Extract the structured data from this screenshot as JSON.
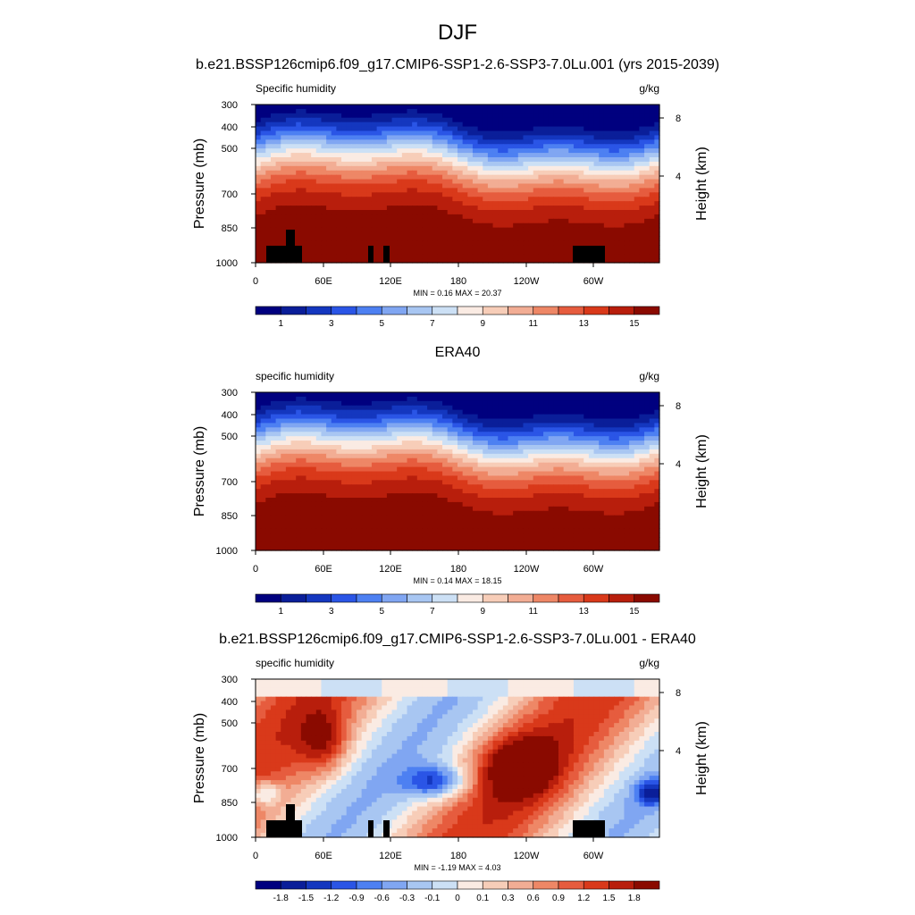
{
  "figure": {
    "title": "DJF"
  },
  "chart_data": [
    {
      "type": "heatmap",
      "title": "b.e21.BSSP126cmip6.f09_g17.CMIP6-SSP1-2.6-SSP3-7.0Lu.001 (yrs 2015-2039)",
      "left_label": "Specific humidity",
      "right_label": "g/kg",
      "ylabel": "Pressure (mb)",
      "ylabel_right": "Height (km)",
      "x_ticks": [
        "0",
        "60E",
        "120E",
        "180",
        "120W",
        "60W"
      ],
      "y_ticks": [
        "300",
        "400",
        "500",
        "700",
        "850",
        "1000"
      ],
      "y_ticks_right": [
        "8",
        "4"
      ],
      "stats": "MIN =  0.16  MAX =  20.37",
      "colorbar_labels": [
        "1",
        "3",
        "5",
        "7",
        "9",
        "11",
        "13",
        "15"
      ],
      "colors": [
        "#00007f",
        "#0a1e99",
        "#1437bf",
        "#2a55e6",
        "#4d80f2",
        "#80a6f2",
        "#a8c6f2",
        "#cce0f5",
        "#faebe3",
        "#f7cdb8",
        "#f2ad94",
        "#ee8766",
        "#e65c3e",
        "#d9391a",
        "#b81e0c",
        "#8a0a00"
      ],
      "min": 0.16,
      "max": 20.37,
      "topography": true
    },
    {
      "type": "heatmap",
      "title": "ERA40",
      "left_label": "specific humidity",
      "right_label": "g/kg",
      "ylabel": "Pressure (mb)",
      "ylabel_right": "Height (km)",
      "x_ticks": [
        "0",
        "60E",
        "120E",
        "180",
        "120W",
        "60W"
      ],
      "y_ticks": [
        "300",
        "400",
        "500",
        "700",
        "850",
        "1000"
      ],
      "y_ticks_right": [
        "8",
        "4"
      ],
      "stats": "MIN =  0.14  MAX =  18.15",
      "colorbar_labels": [
        "1",
        "3",
        "5",
        "7",
        "9",
        "11",
        "13",
        "15"
      ],
      "colors": [
        "#00007f",
        "#0a1e99",
        "#1437bf",
        "#2a55e6",
        "#4d80f2",
        "#80a6f2",
        "#a8c6f2",
        "#cce0f5",
        "#faebe3",
        "#f7cdb8",
        "#f2ad94",
        "#ee8766",
        "#e65c3e",
        "#d9391a",
        "#b81e0c",
        "#8a0a00"
      ],
      "min": 0.14,
      "max": 18.15,
      "topography": false
    },
    {
      "type": "heatmap",
      "title": "b.e21.BSSP126cmip6.f09_g17.CMIP6-SSP1-2.6-SSP3-7.0Lu.001 - ERA40",
      "left_label": "specific humidity",
      "right_label": "g/kg",
      "ylabel": "Pressure (mb)",
      "ylabel_right": "Height (km)",
      "x_ticks": [
        "0",
        "60E",
        "120E",
        "180",
        "120W",
        "60W"
      ],
      "y_ticks": [
        "300",
        "400",
        "500",
        "700",
        "850",
        "1000"
      ],
      "y_ticks_right": [
        "8",
        "4"
      ],
      "stats": "MIN = -1.19  MAX =  4.03",
      "colorbar_labels": [
        "-1.8",
        "-1.5",
        "-1.2",
        "-0.9",
        "-0.6",
        "-0.3",
        "-0.1",
        "0",
        "0.1",
        "0.3",
        "0.6",
        "0.9",
        "1.2",
        "1.5",
        "1.8"
      ],
      "colors": [
        "#00007f",
        "#0a1e99",
        "#1437bf",
        "#2a55e6",
        "#4d80f2",
        "#80a6f2",
        "#a8c6f2",
        "#cce0f5",
        "#faebe3",
        "#f7cdb8",
        "#f2ad94",
        "#ee8766",
        "#e65c3e",
        "#d9391a",
        "#b81e0c",
        "#8a0a00"
      ],
      "min": -1.19,
      "max": 4.03,
      "topography": true
    }
  ]
}
